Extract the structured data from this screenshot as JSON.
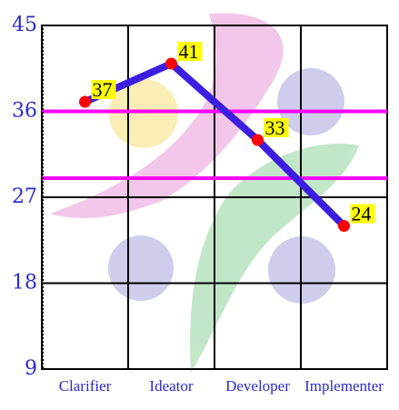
{
  "chart_data": {
    "type": "line",
    "categories": [
      "Clarifier",
      "Ideator",
      "Developer",
      "Implementer"
    ],
    "series": [
      {
        "values": [
          37,
          41,
          33,
          24
        ]
      }
    ],
    "yticks": [
      9,
      18,
      27,
      36,
      45
    ],
    "ylim": [
      9,
      45
    ],
    "grid": true,
    "reference_lines": [
      36,
      29
    ],
    "data_labels": [
      "37",
      "41",
      "33",
      "24"
    ],
    "colors": {
      "line": "#3b1ee0",
      "marker": "#ff0000",
      "label_bg": "#ffff00",
      "reference": "#ff00ff",
      "tick_text": "#2a2ad6"
    }
  }
}
